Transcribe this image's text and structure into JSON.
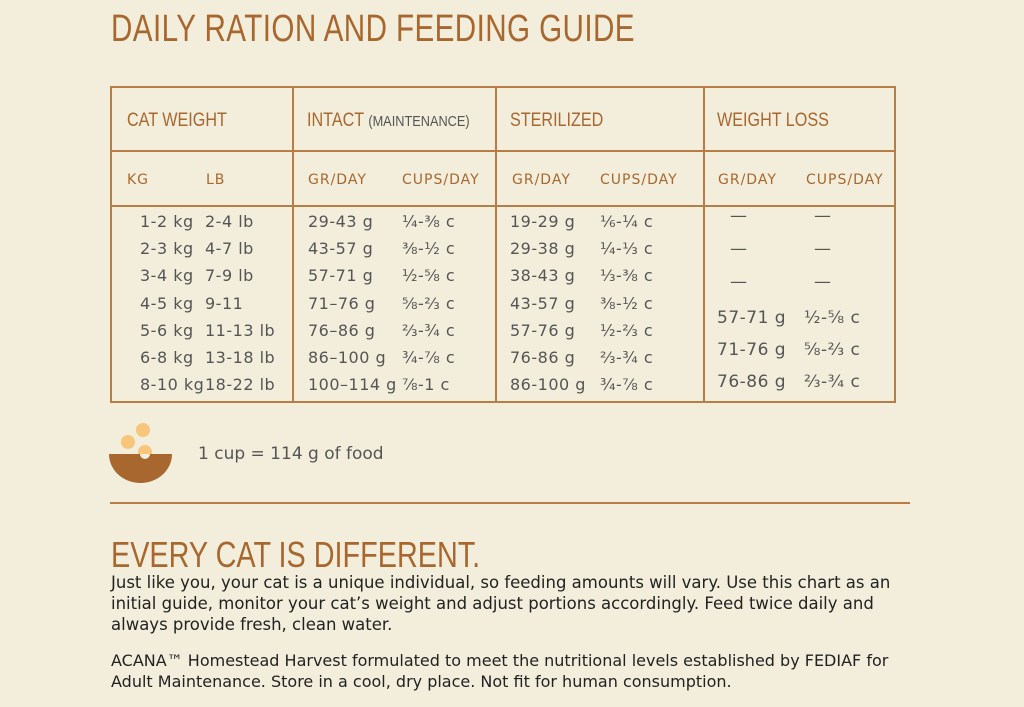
{
  "title": "DAILY RATION AND FEEDING GUIDE",
  "table": {
    "headers": {
      "weight": "CAT WEIGHT",
      "intact": "INTACT",
      "intact_note": "(MAINTENANCE)",
      "sterilized": "STERILIZED",
      "weight_loss": "WEIGHT LOSS"
    },
    "subheaders": {
      "kg": "KG",
      "lb": "LB",
      "gr1": "GR/DAY",
      "cups1": "CUPS/DAY",
      "gr2": "GR/DAY",
      "cups2": "CUPS/DAY",
      "gr3": "GR/DAY",
      "cups3": "CUPS/DAY"
    },
    "rows": [
      {
        "kg": "1-2 kg",
        "lb": "2-4 lb",
        "ig": "29-43 g",
        "ic": "¼-⅜ c",
        "sg": "19-29 g",
        "sc": "⅙-¼ c",
        "wg": "—",
        "wc": "—"
      },
      {
        "kg": "2-3 kg",
        "lb": "4-7 lb",
        "ig": "43-57 g",
        "ic": "⅜-½ c",
        "sg": "29-38 g",
        "sc": "¼-⅓ c",
        "wg": "—",
        "wc": "—"
      },
      {
        "kg": "3-4 kg",
        "lb": "7-9 lb",
        "ig": "57-71 g",
        "ic": "½-⅝ c",
        "sg": "38-43 g",
        "sc": "⅓-⅜ c",
        "wg": "—",
        "wc": "—"
      },
      {
        "kg": "4-5 kg",
        "lb": "9-11",
        "ig": "71–76 g",
        "ic": "⅝-⅔ c",
        "sg": "43-57 g",
        "sc": "⅜-½ c",
        "wg": "57-71 g",
        "wc": "½-⅝ c"
      },
      {
        "kg": "5-6 kg",
        "lb": "11-13 lb",
        "ig": "76–86 g",
        "ic": "⅔-¾ c",
        "sg": "57-76 g",
        "sc": "½-⅔ c",
        "wg": "71-76 g",
        "wc": "⅝-⅔ c"
      },
      {
        "kg": "6-8 kg",
        "lb": "13-18 lb",
        "ig": "86–100 g",
        "ic": "¾-⅞ c",
        "sg": "76-86 g",
        "sc": "⅔-¾ c",
        "wg": "76-86 g",
        "wc": "⅔-¾ c"
      },
      {
        "kg": "8-10 kg",
        "lb": "18-22 lb",
        "ig": "100–114 g",
        "ic": "⅞-1 c",
        "sg": "86-100 g",
        "sc": "¾-⅞ c"
      }
    ]
  },
  "cup_note": "1 cup = 114 g of food",
  "subtitle": "EVERY CAT IS DIFFERENT.",
  "paragraph1": "Just like you, your cat is a unique individual, so feeding amounts will vary. Use this chart as an initial guide, monitor your cat’s weight and adjust portions accordingly. Feed twice daily and always provide fresh, clean water.",
  "paragraph2": "ACANA™ Homestead Harvest formulated to meet the nutritional levels established by FEDIAF for Adult Maintenance. Store in a cool, dry place. Not fit for human consumption."
}
